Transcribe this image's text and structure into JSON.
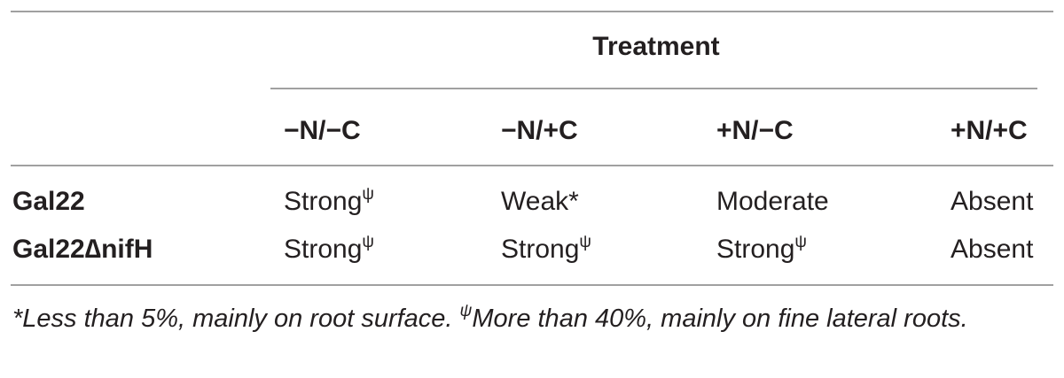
{
  "table": {
    "spanner": "Treatment",
    "columns": [
      "−N/−C",
      "−N/+C",
      "+N/−C",
      "+N/+C"
    ],
    "rows": [
      {
        "label": "Gal22",
        "cells": [
          {
            "text": "Strong",
            "sup": "ψ"
          },
          {
            "text": "Weak*"
          },
          {
            "text": "Moderate"
          },
          {
            "text": "Absent"
          }
        ]
      },
      {
        "label": "Gal22∆nifH",
        "cells": [
          {
            "text": "Strong",
            "sup": "ψ"
          },
          {
            "text": "Strong",
            "sup": "ψ"
          },
          {
            "text": "Strong",
            "sup": "ψ"
          },
          {
            "text": "Absent"
          }
        ]
      }
    ],
    "footnote": [
      "*Less than 5%, mainly on root surface. ",
      "ψ",
      "More than 40%, mainly on fine lateral roots."
    ]
  }
}
